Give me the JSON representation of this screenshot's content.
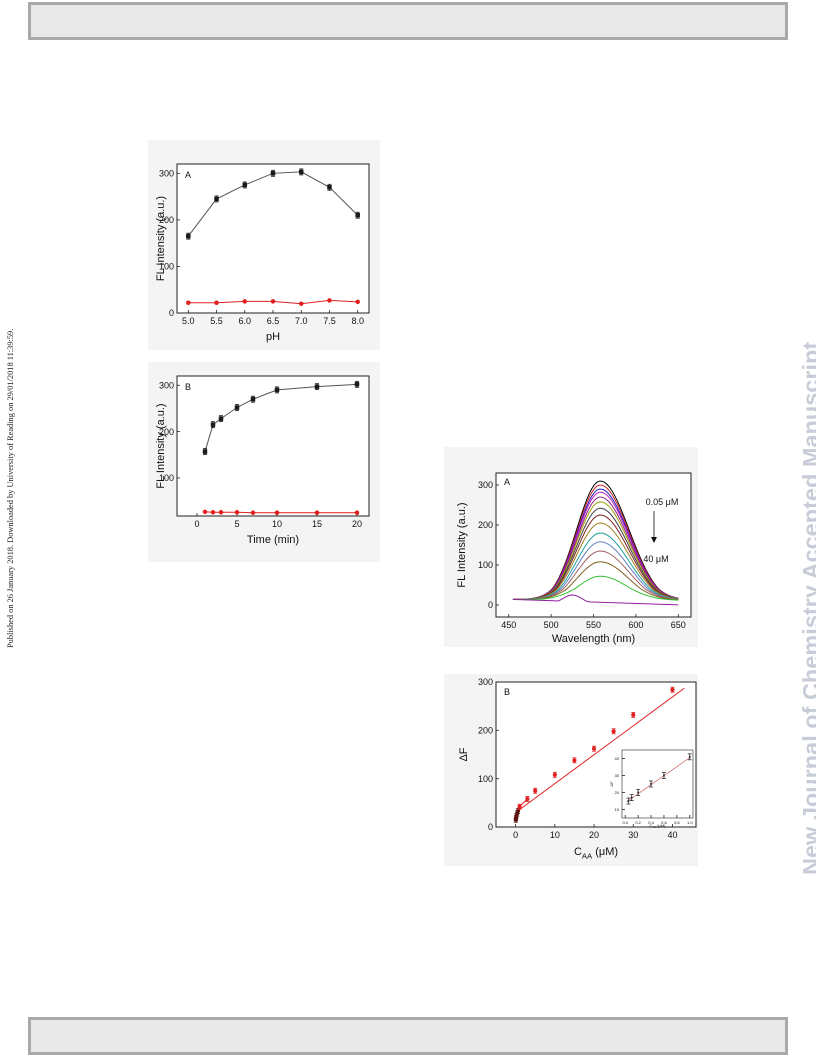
{
  "page": {
    "side_text": "Published on 26 January 2018. Downloaded by University of Reading on 29/01/2018 11:39:59.",
    "watermark": "New Journal of Chemistry Accepted Manuscript"
  },
  "chart_data": [
    {
      "type": "line",
      "panel_label": "A",
      "xlabel": "pH",
      "ylabel": "FL Intensity (a.u.)",
      "xlim": [
        4.8,
        8.2
      ],
      "ylim": [
        0,
        320
      ],
      "x_ticks": [
        "5.0",
        "5.5",
        "6.0",
        "6.5",
        "7.0",
        "7.5",
        "8.0"
      ],
      "y_ticks": [
        "0",
        "100",
        "200",
        "300"
      ],
      "series": [
        {
          "color": "#1a1a1a",
          "marker": "square",
          "x": [
            5.0,
            5.5,
            6.0,
            6.5,
            7.0,
            7.5,
            8.0
          ],
          "y": [
            165,
            245,
            275,
            300,
            303,
            270,
            210
          ]
        },
        {
          "color": "#e02020",
          "marker": "circle",
          "x": [
            5.0,
            5.5,
            6.0,
            6.5,
            7.0,
            7.5,
            8.0
          ],
          "y": [
            22,
            22,
            25,
            25,
            20,
            27,
            24
          ]
        }
      ]
    },
    {
      "type": "line",
      "panel_label": "B",
      "xlabel": "Time (min)",
      "ylabel": "FL Intensity (a.u.)",
      "xlim": [
        -2.5,
        21.5
      ],
      "ylim": [
        18,
        320
      ],
      "x_ticks": [
        "0",
        "5",
        "10",
        "15",
        "20"
      ],
      "y_ticks": [
        "100",
        "200",
        "300"
      ],
      "series": [
        {
          "color": "#1a1a1a",
          "marker": "square",
          "x": [
            1,
            2,
            3,
            5,
            7,
            10,
            15,
            20
          ],
          "y": [
            157,
            215,
            228,
            252,
            270,
            290,
            297,
            302
          ]
        },
        {
          "color": "#e02020",
          "marker": "circle",
          "x": [
            1,
            2,
            3,
            5,
            7,
            10,
            15,
            20
          ],
          "y": [
            27,
            26,
            26,
            26,
            25,
            25,
            25,
            25
          ]
        }
      ]
    },
    {
      "type": "line",
      "panel_label": "A",
      "xlabel": "Wavelength (nm)",
      "ylabel": "FL Intensity (a.u.)",
      "xlim": [
        435,
        665
      ],
      "ylim": [
        -30,
        330
      ],
      "x_ticks": [
        "450",
        "500",
        "550",
        "600",
        "650"
      ],
      "y_ticks": [
        "0",
        "100",
        "200",
        "300"
      ],
      "annotations": {
        "top": "0.05 μM",
        "bottom": "40 μM"
      },
      "peak_x": 558,
      "peaks": [
        310,
        300,
        290,
        282,
        270,
        258,
        242,
        225,
        205,
        180,
        158,
        135,
        108,
        72
      ],
      "colors": [
        "#000000",
        "#d02020",
        "#2020c0",
        "#c020c0",
        "#8a2080",
        "#a0a000",
        "#404040",
        "#802020",
        "#a08020",
        "#20a0a0",
        "#6080c0",
        "#a06060",
        "#806020",
        "#30c030"
      ],
      "flat_curve": {
        "color": "#9020a0",
        "peak_x": 525,
        "peak_y": 25
      }
    },
    {
      "type": "scatter",
      "panel_label": "B",
      "xlabel": "C_AA (μM)",
      "ylabel": "ΔF",
      "xlim": [
        -5,
        46
      ],
      "ylim": [
        0,
        300
      ],
      "x_ticks": [
        "0",
        "10",
        "20",
        "30",
        "40"
      ],
      "y_ticks": [
        "0",
        "100",
        "200",
        "300"
      ],
      "points": {
        "x": [
          0.05,
          0.1,
          0.2,
          0.4,
          0.6,
          1,
          3,
          5,
          10,
          15,
          20,
          25,
          30,
          40
        ],
        "y": [
          15,
          18,
          22,
          28,
          33,
          42,
          58,
          75,
          108,
          138,
          162,
          198,
          232,
          284
        ]
      },
      "fit": {
        "x": [
          0,
          43
        ],
        "y": [
          30,
          287
        ]
      },
      "inset": {
        "xlabel": "C_AA (μM)",
        "ylabel": "ΔF",
        "xlim": [
          -0.05,
          1.05
        ],
        "ylim": [
          5,
          45
        ],
        "x_ticks": [
          "0.0",
          "0.2",
          "0.4",
          "0.6",
          "0.8",
          "1.0"
        ],
        "y_ticks": [
          "10",
          "20",
          "30",
          "40"
        ],
        "points": {
          "x": [
            0.05,
            0.1,
            0.2,
            0.4,
            0.6,
            1.0
          ],
          "y": [
            15,
            17,
            20,
            25,
            30,
            41
          ]
        }
      }
    }
  ]
}
